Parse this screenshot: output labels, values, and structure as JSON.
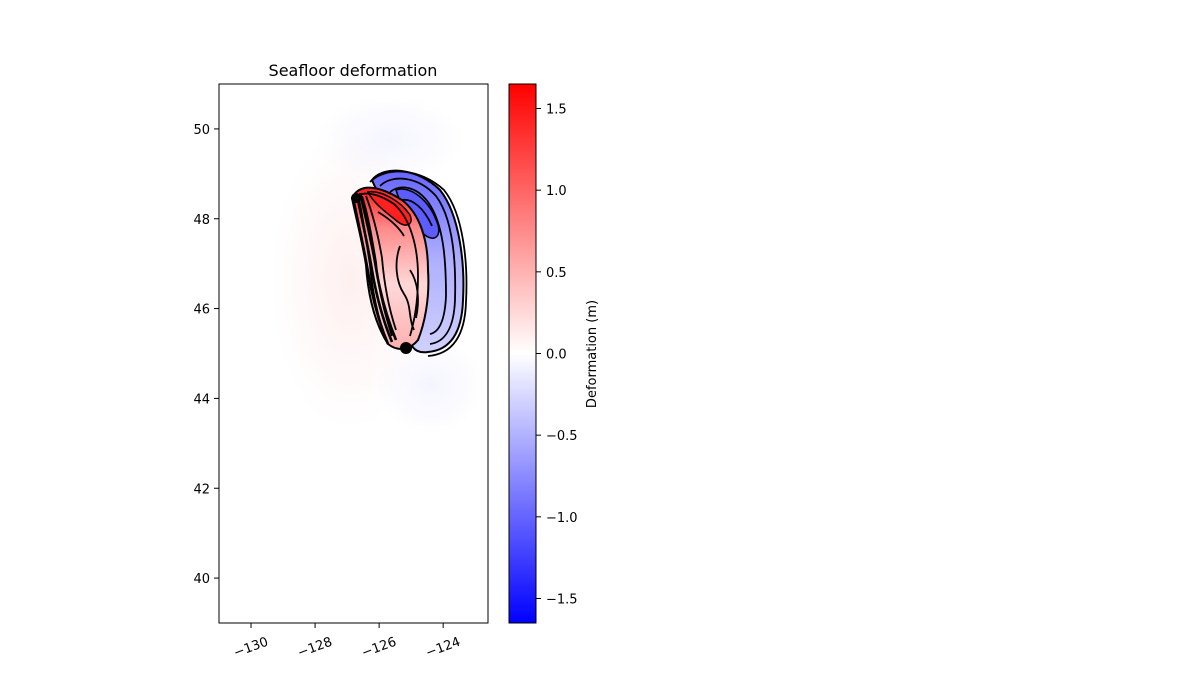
{
  "chart_data": {
    "type": "heatmap",
    "title": "Seafloor deformation",
    "xlabel": "",
    "ylabel": "",
    "xlim": [
      -131,
      -122.6
    ],
    "ylim": [
      39,
      51
    ],
    "xticks": [
      -130,
      -128,
      -126,
      -124
    ],
    "xtick_labels": [
      "−130",
      "−128",
      "−126",
      "−124"
    ],
    "yticks": [
      40,
      42,
      44,
      46,
      48,
      50
    ],
    "ytick_labels": [
      "40",
      "42",
      "44",
      "46",
      "48",
      "50"
    ],
    "grid": false,
    "colormap": "bwr",
    "colorbar": {
      "label": "Deformation (m)",
      "vmin": -1.65,
      "vmax": 1.65,
      "ticks": [
        -1.5,
        -1.0,
        -0.5,
        0.0,
        0.5,
        1.0,
        1.5
      ],
      "tick_labels": [
        "−1.5",
        "−1.0",
        "−0.5",
        "0.0",
        "0.5",
        "1.0",
        "1.5"
      ]
    },
    "contours": "black contour lines of deformation",
    "features": [
      {
        "name": "uplift",
        "center_lon": -125.5,
        "center_lat": 46.8,
        "max_value": 1.65
      },
      {
        "name": "subsidence",
        "center_lon": -124.3,
        "center_lat": 46.9,
        "min_value": -0.9
      }
    ]
  },
  "colors": {
    "positive": "#ff0000",
    "neutral": "#ffffff",
    "negative": "#0000ff",
    "contour": "#000000"
  }
}
